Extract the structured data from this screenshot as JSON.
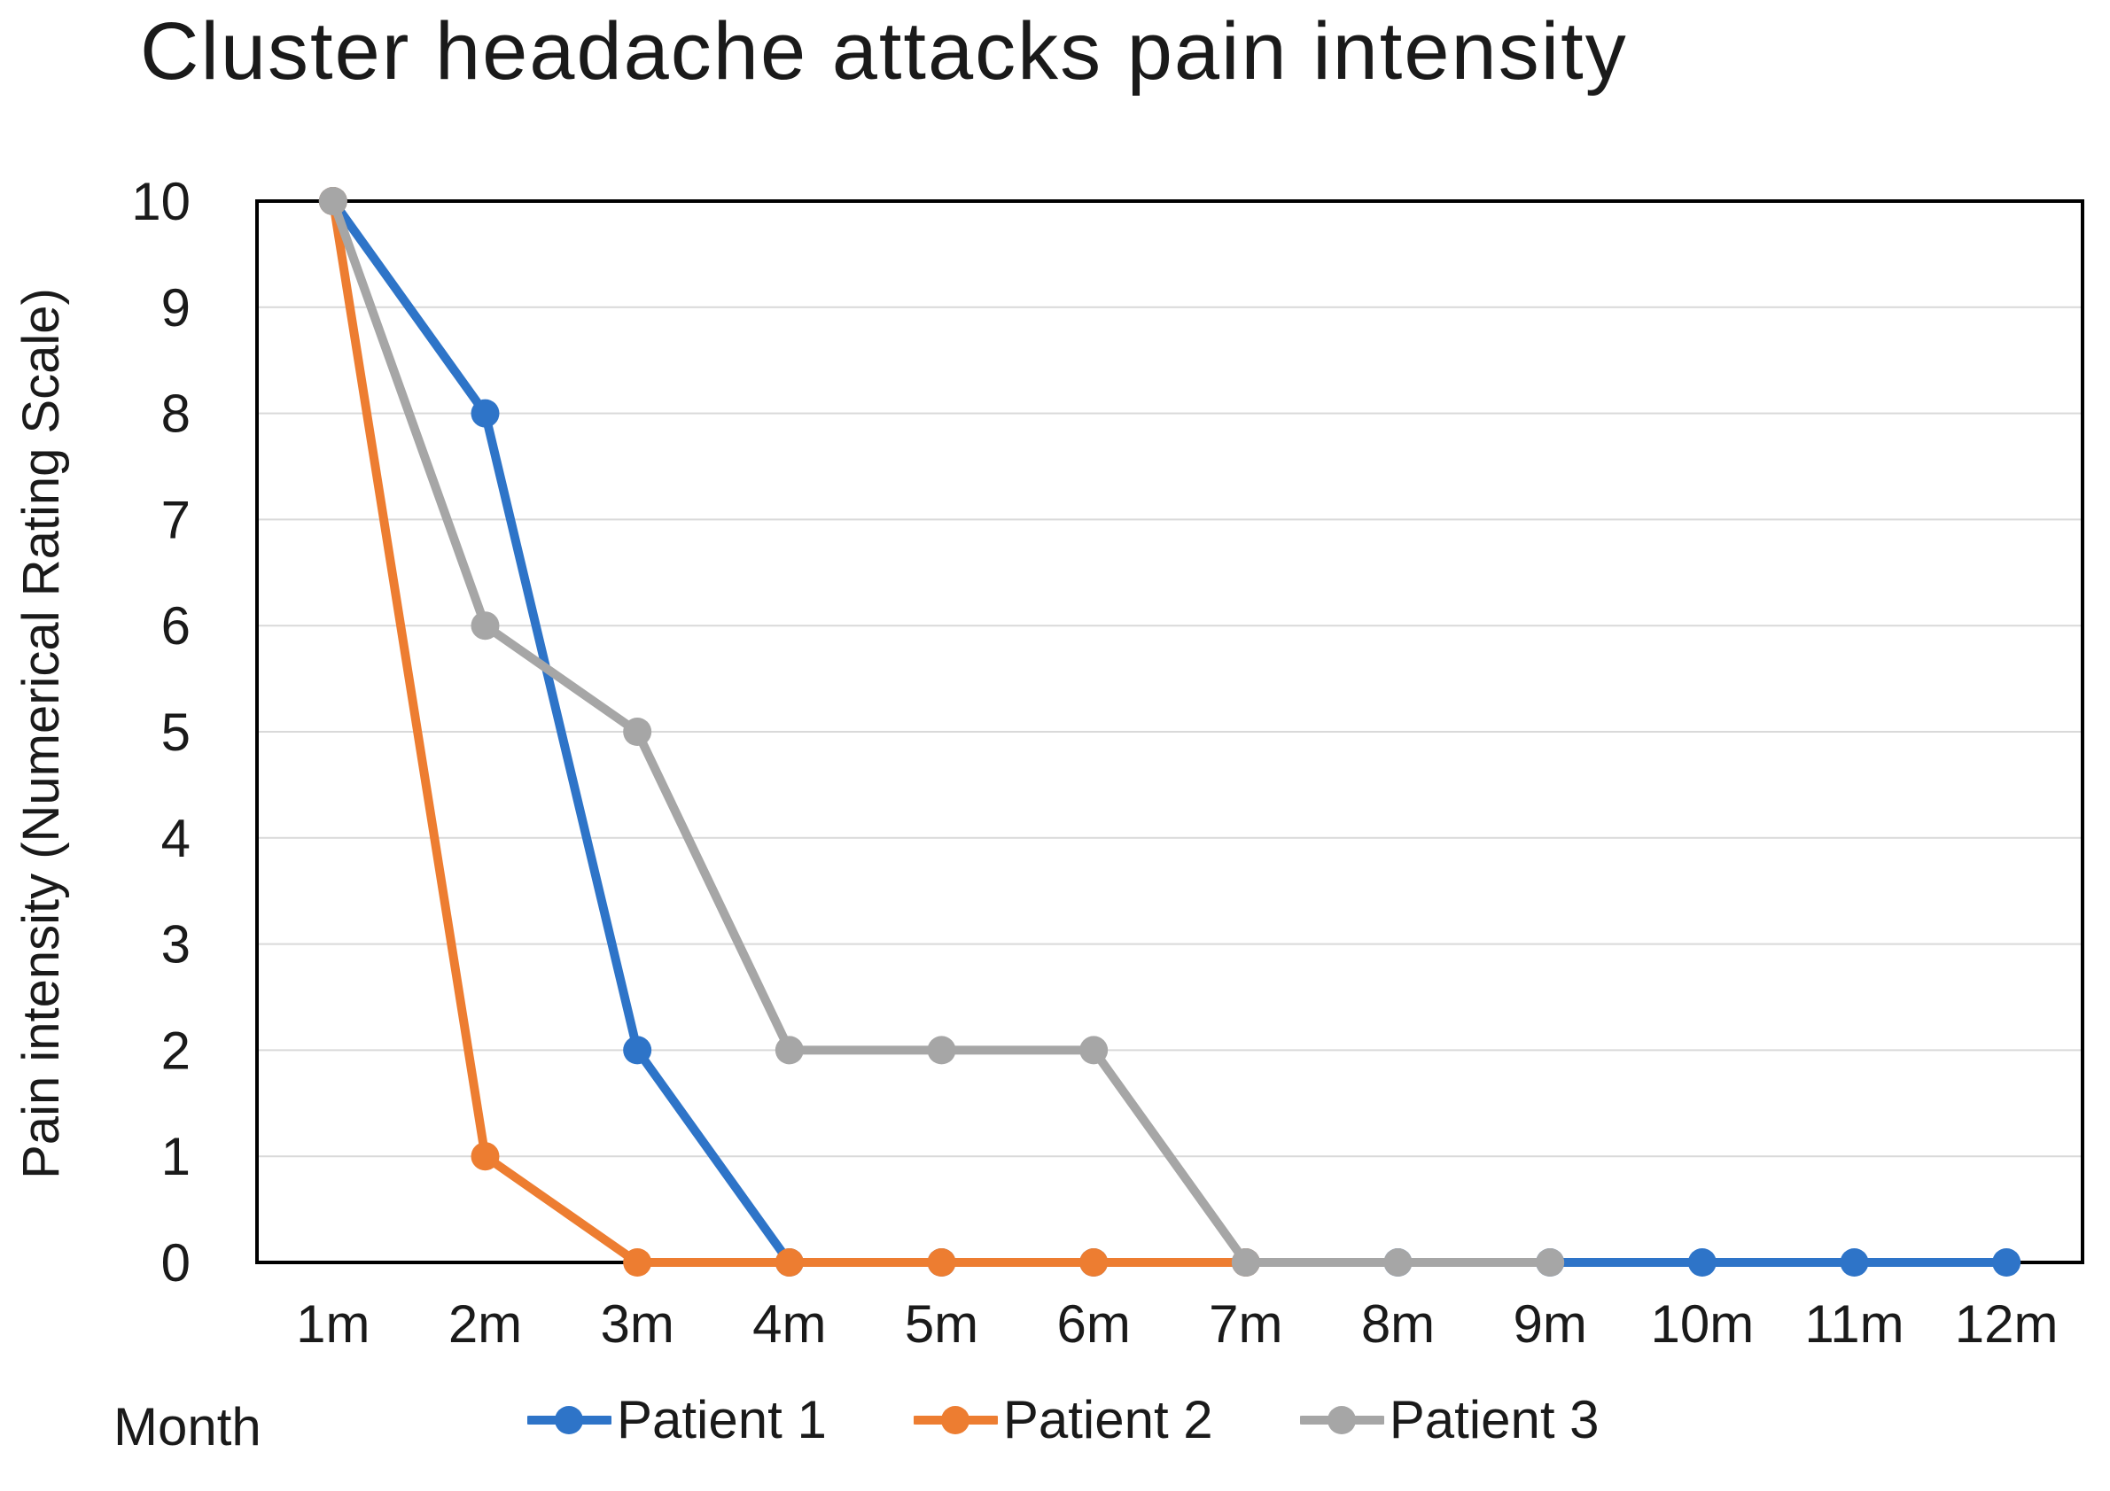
{
  "chart_data": {
    "type": "line",
    "title": "Cluster headache attacks pain intensity",
    "xlabel": "Month",
    "ylabel": "Pain intensity (Numerical Rating Scale)",
    "categories": [
      "1m",
      "2m",
      "3m",
      "4m",
      "5m",
      "6m",
      "7m",
      "8m",
      "9m",
      "10m",
      "11m",
      "12m"
    ],
    "ylim": [
      0,
      10
    ],
    "ytick_step": 1,
    "grid": true,
    "legend_position": "bottom",
    "series": [
      {
        "name": "Patient 1",
        "color": "#2E74C8",
        "values": [
          10,
          8,
          2,
          0,
          0,
          0,
          0,
          0,
          0,
          0,
          0,
          0
        ]
      },
      {
        "name": "Patient 2",
        "color": "#ED7D31",
        "values": [
          10,
          1,
          0,
          0,
          0,
          0,
          0
        ]
      },
      {
        "name": "Patient 3",
        "color": "#A6A6A6",
        "values": [
          10,
          6,
          5,
          2,
          2,
          2,
          0,
          0,
          0
        ]
      }
    ],
    "styles": {
      "grid_color": "#D9D9D9",
      "axis_color": "#000000",
      "text_color": "#1A1A1A"
    }
  }
}
